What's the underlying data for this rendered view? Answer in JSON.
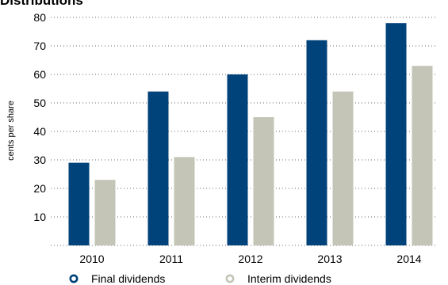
{
  "chart_data": {
    "type": "bar",
    "title": "Distributions",
    "xlabel": "",
    "ylabel": "cents per share",
    "categories": [
      "2010",
      "2011",
      "2012",
      "2013",
      "2014"
    ],
    "series": [
      {
        "name": "Final dividends",
        "color": "#00427a",
        "values": [
          29,
          54,
          60,
          72,
          78
        ]
      },
      {
        "name": "Interim dividends",
        "color": "#c4c5b7",
        "values": [
          23,
          31,
          45,
          54,
          63
        ]
      }
    ],
    "yticks": [
      10,
      20,
      30,
      40,
      50,
      60,
      70,
      80
    ],
    "ylim": [
      0,
      80
    ],
    "grid": "horizontal dotted",
    "legend_position": "bottom-left"
  }
}
